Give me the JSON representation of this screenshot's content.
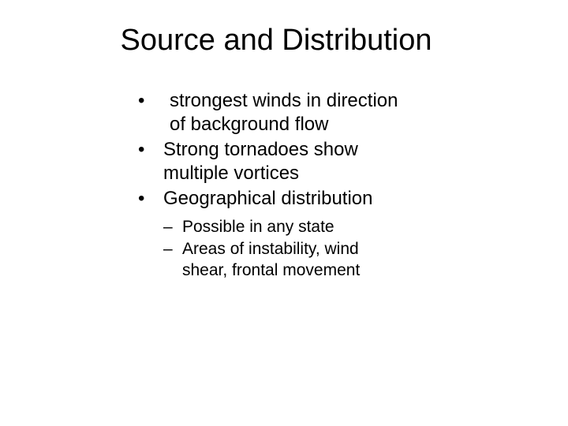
{
  "slide": {
    "title": "Source and Distribution",
    "bullets": [
      {
        "text": " strongest winds in direction of background flow"
      },
      {
        "text": "Strong tornadoes show multiple vortices"
      },
      {
        "text": "Geographical distribution"
      }
    ],
    "sub_bullets": [
      {
        "text": "Possible in any state"
      },
      {
        "text": "Areas of instability, wind shear, frontal movement"
      }
    ]
  },
  "styling": {
    "background_color": "#ffffff",
    "text_color": "#000000",
    "title_fontsize": 38,
    "bullet_fontsize": 24,
    "sub_bullet_fontsize": 21,
    "font_family": "Arial"
  }
}
